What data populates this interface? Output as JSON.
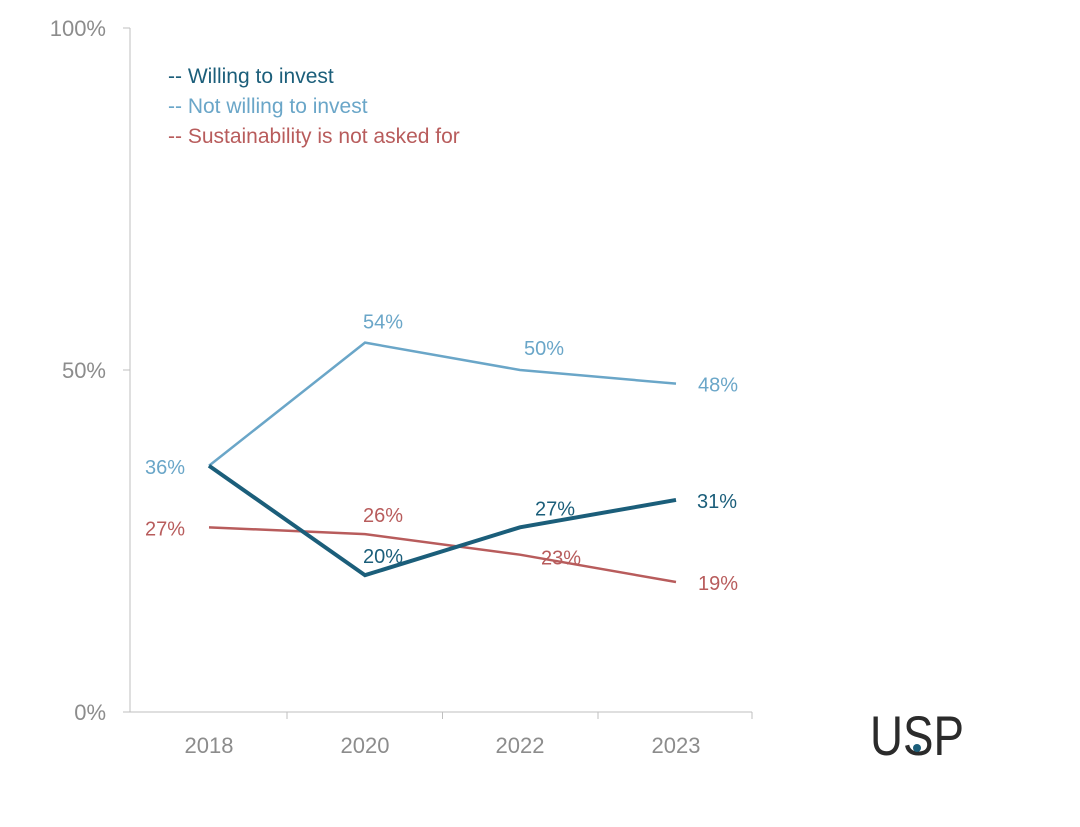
{
  "chart_data": {
    "type": "line",
    "categories": [
      "2018",
      "2020",
      "2022",
      "2023"
    ],
    "ylim": [
      0,
      100
    ],
    "yticks": [
      "0%",
      "50%",
      "100%"
    ],
    "ytick_values": [
      0,
      50,
      100
    ],
    "grid": false,
    "legend_position": "top-left",
    "legend_prefix": "--",
    "series": [
      {
        "name": "Willing to invest",
        "color": "#1b5e7a",
        "values": [
          36,
          20,
          27,
          31
        ],
        "labels": [
          "",
          "20%",
          "27%",
          "31%"
        ]
      },
      {
        "name": "Not willing to invest",
        "color": "#6aa6c8",
        "values": [
          36,
          54,
          50,
          48
        ],
        "labels": [
          "36%",
          "54%",
          "50%",
          "48%"
        ]
      },
      {
        "name": "Sustainability is not asked for",
        "color": "#b85c5c",
        "values": [
          27,
          26,
          23,
          19
        ],
        "labels": [
          "27%",
          "26%",
          "23%",
          "19%"
        ]
      }
    ]
  },
  "logo": {
    "text": "USP",
    "accent_color": "#1b5e7a"
  }
}
